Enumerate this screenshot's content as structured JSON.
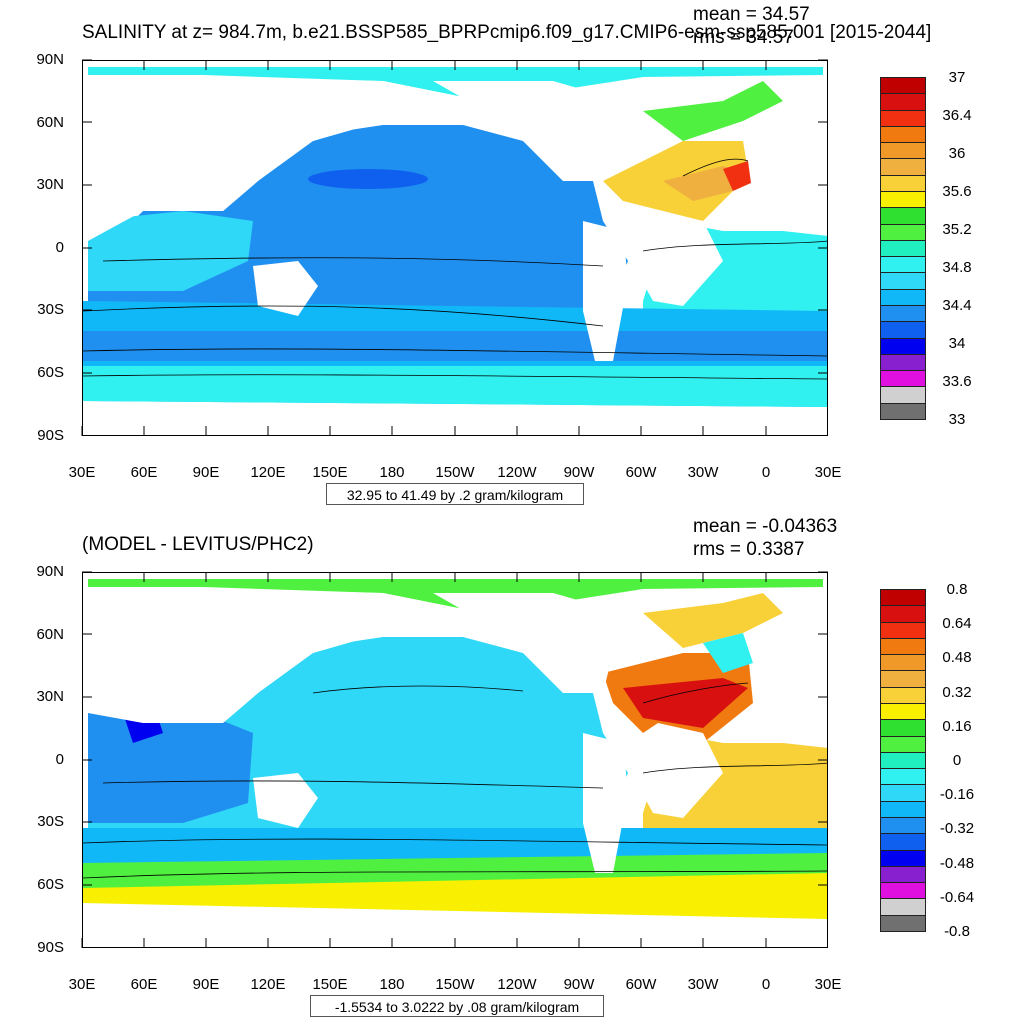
{
  "panels": [
    {
      "title": "SALINITY at z= 984.7m, b.e21.BSSP585_BPRPcmip6.f09_g17.CMIP6-esm-ssp585.001 [2015-2044]",
      "mean": "mean = 34.57",
      "rms": "rms = 34.57",
      "contour_info": "32.95 to 41.49 by .2 gram/kilogram",
      "colorbar": {
        "colors": [
          "#c00000",
          "#d81010",
          "#f03010",
          "#f07a10",
          "#f09828",
          "#f0b040",
          "#f8d038",
          "#f8f000",
          "#30e030",
          "#50f040",
          "#20f0c0",
          "#30f0f0",
          "#30d8f8",
          "#10b8f8",
          "#2090f0",
          "#1060f0",
          "#0000f0",
          "#8820d0",
          "#e010e0",
          "#d0d0d0",
          "#707070"
        ],
        "labels": [
          "37",
          "36.4",
          "36",
          "35.6",
          "35.2",
          "34.8",
          "34.4",
          "34",
          "33.6",
          "33"
        ]
      }
    },
    {
      "title": "(MODEL - LEVITUS/PHC2)",
      "mean": "mean = -0.04363",
      "rms": "rms = 0.3387",
      "contour_info": "-1.5534 to 3.0222 by .08 gram/kilogram",
      "colorbar": {
        "colors": [
          "#c00000",
          "#d81010",
          "#f03010",
          "#f07a10",
          "#f09828",
          "#f0b040",
          "#f8d038",
          "#f8f000",
          "#30e030",
          "#50f040",
          "#20f0c0",
          "#30f0f0",
          "#30d8f8",
          "#10b8f8",
          "#2090f0",
          "#1060f0",
          "#0000f0",
          "#8820d0",
          "#e010e0",
          "#d0d0d0",
          "#707070"
        ],
        "labels": [
          "0.8",
          "0.64",
          "0.48",
          "0.32",
          "0.16",
          "0",
          "-0.16",
          "-0.32",
          "-0.48",
          "-0.64",
          "-0.8"
        ]
      }
    }
  ],
  "axes": {
    "y_ticks": [
      "90N",
      "60N",
      "30N",
      "0",
      "30S",
      "60S",
      "90S"
    ],
    "x_ticks": [
      "30E",
      "60E",
      "90E",
      "120E",
      "150E",
      "180",
      "150W",
      "120W",
      "90W",
      "60W",
      "30W",
      "0",
      "30E"
    ]
  },
  "map_colors": {
    "top_pacific": "#2090f0",
    "top_southern": "#10b8f8",
    "top_arctic": "#30f0f0",
    "top_atlantic_core": "#f0b040",
    "bottom_pacific": "#10b8f8",
    "bottom_southern_band": "#50f040",
    "bottom_atlantic_core": "#d81010"
  }
}
